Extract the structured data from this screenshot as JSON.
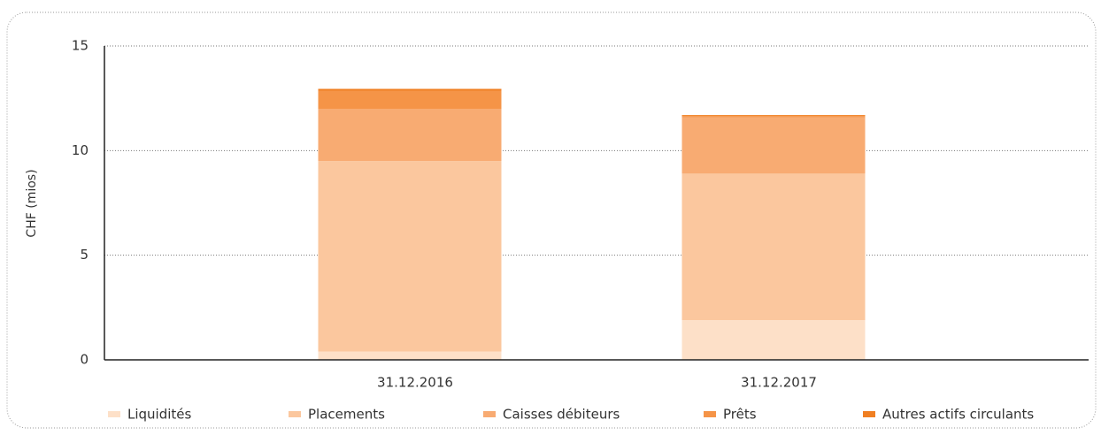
{
  "chart_data": {
    "type": "stacked_bar",
    "y_label": "CHF (mios)",
    "categories": [
      "31.12.2016",
      "31.12.2017"
    ],
    "series": [
      {
        "name": "Liquidités",
        "color": "#fde0c8",
        "values": [
          0.4,
          1.9
        ]
      },
      {
        "name": "Placements",
        "color": "#fbc79e",
        "values": [
          9.1,
          7.0
        ]
      },
      {
        "name": "Caisses débiteurs",
        "color": "#f8ab72",
        "values": [
          2.5,
          2.7
        ]
      },
      {
        "name": "Prêts",
        "color": "#f59447",
        "values": [
          0.85,
          0.05
        ]
      },
      {
        "name": "Autres actifs circulants",
        "color": "#f07f22",
        "values": [
          0.1,
          0.05
        ]
      }
    ],
    "ylim": [
      0,
      15
    ],
    "yticks": [
      0,
      5,
      10,
      15
    ],
    "grid": true
  }
}
